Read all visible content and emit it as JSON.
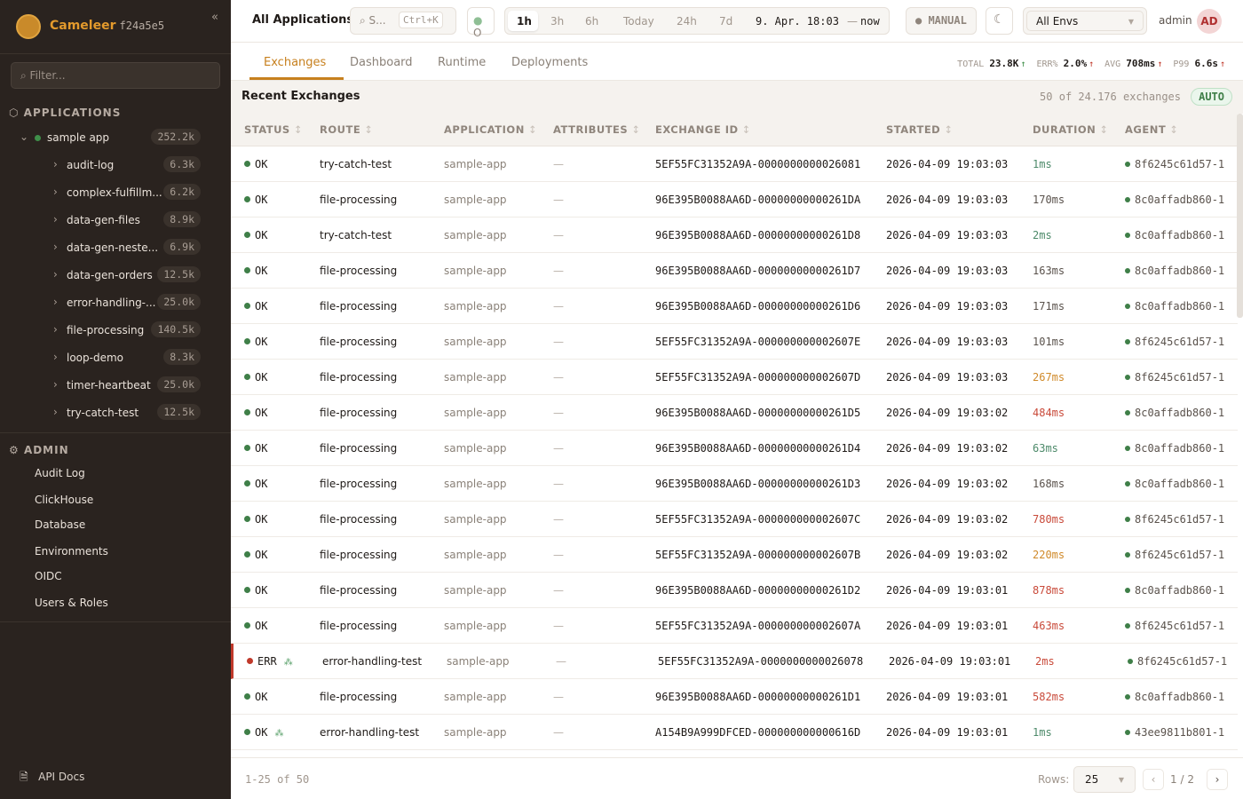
{
  "brand": {
    "name": "Cameleer",
    "hash": "f24a5e5",
    "collapse": "«"
  },
  "sidebar": {
    "filter_placeholder": "Filter...",
    "applications_label": "APPLICATIONS",
    "app": {
      "name": "sample app",
      "count": "252.2k",
      "status_color": "#3f8f4a"
    },
    "routes": [
      {
        "name": "audit-log",
        "count": "6.3k"
      },
      {
        "name": "complex-fulfillm...",
        "count": "6.2k"
      },
      {
        "name": "data-gen-files",
        "count": "8.9k"
      },
      {
        "name": "data-gen-neste...",
        "count": "6.9k"
      },
      {
        "name": "data-gen-orders",
        "count": "12.5k"
      },
      {
        "name": "error-handling-...",
        "count": "25.0k"
      },
      {
        "name": "file-processing",
        "count": "140.5k"
      },
      {
        "name": "loop-demo",
        "count": "8.3k"
      },
      {
        "name": "timer-heartbeat",
        "count": "25.0k"
      },
      {
        "name": "try-catch-test",
        "count": "12.5k"
      }
    ],
    "admin_label": "ADMIN",
    "admin_items": [
      "Audit Log",
      "ClickHouse",
      "Database",
      "Environments",
      "OIDC",
      "Users & Roles"
    ],
    "api_docs": "API Docs"
  },
  "topbar": {
    "title": "All Applications",
    "search": "S...",
    "shortcut": "Ctrl+K",
    "status": "O",
    "ranges": [
      "1h",
      "3h",
      "6h",
      "Today",
      "24h",
      "7d"
    ],
    "active_range": "1h",
    "range_from": "9. Apr. 18:03",
    "range_sep": "—",
    "range_to": "now",
    "refresh": "MANUAL",
    "env": "All Envs",
    "user": "admin",
    "avatar": "AD"
  },
  "tabs": [
    "Exchanges",
    "Dashboard",
    "Runtime",
    "Deployments"
  ],
  "active_tab": "Exchanges",
  "stats": [
    {
      "label": "TOTAL",
      "value": "23.8K",
      "trend": "↑",
      "color": "#3f8f4a"
    },
    {
      "label": "ERR%",
      "value": "2.0%",
      "trend": "↑",
      "color": "#c0392b"
    },
    {
      "label": "AVG",
      "value": "708ms",
      "trend": "↑",
      "color": "#c0392b"
    },
    {
      "label": "P99",
      "value": "6.6s",
      "trend": "↑",
      "color": "#c0392b"
    }
  ],
  "section": {
    "title": "Recent Exchanges",
    "summary": "50 of 24.176 exchanges",
    "mode": "AUTO"
  },
  "columns": [
    "STATUS",
    "ROUTE",
    "APPLICATION",
    "ATTRIBUTES",
    "EXCHANGE ID",
    "STARTED",
    "DURATION",
    "AGENT"
  ],
  "colors": {
    "ok": "#3f7f48",
    "err": "#c0392b",
    "fast": "#4d8a6a",
    "normal": "#5a524c",
    "slow": "#d08a2a",
    "very_slow": "#c94a3a",
    "accent": "#c7801e"
  },
  "rows": [
    {
      "status": "OK",
      "route": "try-catch-test",
      "app": "sample-app",
      "attr": "—",
      "id": "5EF55FC31352A9A-0000000000026081",
      "started": "2026-04-09 19:03:03",
      "duration": "1ms",
      "level": "fast",
      "agent": "8f6245c61d57-1"
    },
    {
      "status": "OK",
      "route": "file-processing",
      "app": "sample-app",
      "attr": "—",
      "id": "96E395B0088AA6D-00000000000261DA",
      "started": "2026-04-09 19:03:03",
      "duration": "170ms",
      "level": "normal",
      "agent": "8c0affadb860-1"
    },
    {
      "status": "OK",
      "route": "try-catch-test",
      "app": "sample-app",
      "attr": "—",
      "id": "96E395B0088AA6D-00000000000261D8",
      "started": "2026-04-09 19:03:03",
      "duration": "2ms",
      "level": "fast",
      "agent": "8c0affadb860-1"
    },
    {
      "status": "OK",
      "route": "file-processing",
      "app": "sample-app",
      "attr": "—",
      "id": "96E395B0088AA6D-00000000000261D7",
      "started": "2026-04-09 19:03:03",
      "duration": "163ms",
      "level": "normal",
      "agent": "8c0affadb860-1"
    },
    {
      "status": "OK",
      "route": "file-processing",
      "app": "sample-app",
      "attr": "—",
      "id": "96E395B0088AA6D-00000000000261D6",
      "started": "2026-04-09 19:03:03",
      "duration": "171ms",
      "level": "normal",
      "agent": "8c0affadb860-1"
    },
    {
      "status": "OK",
      "route": "file-processing",
      "app": "sample-app",
      "attr": "—",
      "id": "5EF55FC31352A9A-000000000002607E",
      "started": "2026-04-09 19:03:03",
      "duration": "101ms",
      "level": "normal",
      "agent": "8f6245c61d57-1"
    },
    {
      "status": "OK",
      "route": "file-processing",
      "app": "sample-app",
      "attr": "—",
      "id": "5EF55FC31352A9A-000000000002607D",
      "started": "2026-04-09 19:03:03",
      "duration": "267ms",
      "level": "slow",
      "agent": "8f6245c61d57-1"
    },
    {
      "status": "OK",
      "route": "file-processing",
      "app": "sample-app",
      "attr": "—",
      "id": "96E395B0088AA6D-00000000000261D5",
      "started": "2026-04-09 19:03:02",
      "duration": "484ms",
      "level": "very_slow",
      "agent": "8c0affadb860-1"
    },
    {
      "status": "OK",
      "route": "file-processing",
      "app": "sample-app",
      "attr": "—",
      "id": "96E395B0088AA6D-00000000000261D4",
      "started": "2026-04-09 19:03:02",
      "duration": "63ms",
      "level": "fast",
      "agent": "8c0affadb860-1"
    },
    {
      "status": "OK",
      "route": "file-processing",
      "app": "sample-app",
      "attr": "—",
      "id": "96E395B0088AA6D-00000000000261D3",
      "started": "2026-04-09 19:03:02",
      "duration": "168ms",
      "level": "normal",
      "agent": "8c0affadb860-1"
    },
    {
      "status": "OK",
      "route": "file-processing",
      "app": "sample-app",
      "attr": "—",
      "id": "5EF55FC31352A9A-000000000002607C",
      "started": "2026-04-09 19:03:02",
      "duration": "780ms",
      "level": "very_slow",
      "agent": "8f6245c61d57-1"
    },
    {
      "status": "OK",
      "route": "file-processing",
      "app": "sample-app",
      "attr": "—",
      "id": "5EF55FC31352A9A-000000000002607B",
      "started": "2026-04-09 19:03:02",
      "duration": "220ms",
      "level": "slow",
      "agent": "8f6245c61d57-1"
    },
    {
      "status": "OK",
      "route": "file-processing",
      "app": "sample-app",
      "attr": "—",
      "id": "96E395B0088AA6D-00000000000261D2",
      "started": "2026-04-09 19:03:01",
      "duration": "878ms",
      "level": "very_slow",
      "agent": "8c0affadb860-1"
    },
    {
      "status": "OK",
      "route": "file-processing",
      "app": "sample-app",
      "attr": "—",
      "id": "5EF55FC31352A9A-000000000002607A",
      "started": "2026-04-09 19:03:01",
      "duration": "463ms",
      "level": "very_slow",
      "agent": "8f6245c61d57-1"
    },
    {
      "status": "ERR",
      "trace": true,
      "route": "error-handling-test",
      "app": "sample-app",
      "attr": "—",
      "id": "5EF55FC31352A9A-0000000000026078",
      "started": "2026-04-09 19:03:01",
      "duration": "2ms",
      "level": "very_slow",
      "agent": "8f6245c61d57-1"
    },
    {
      "status": "OK",
      "route": "file-processing",
      "app": "sample-app",
      "attr": "—",
      "id": "96E395B0088AA6D-00000000000261D1",
      "started": "2026-04-09 19:03:01",
      "duration": "582ms",
      "level": "very_slow",
      "agent": "8c0affadb860-1"
    },
    {
      "status": "OK",
      "trace": true,
      "route": "error-handling-test",
      "app": "sample-app",
      "attr": "—",
      "id": "A154B9A999DFCED-000000000000616D",
      "started": "2026-04-09 19:03:01",
      "duration": "1ms",
      "level": "fast",
      "agent": "43ee9811b801-1"
    }
  ],
  "footer": {
    "range": "1-25 of 50",
    "rows_label": "Rows:",
    "rows_value": "25",
    "page": "1",
    "page_sep": "/",
    "pages": "2",
    "prev": "‹",
    "next": "›"
  }
}
